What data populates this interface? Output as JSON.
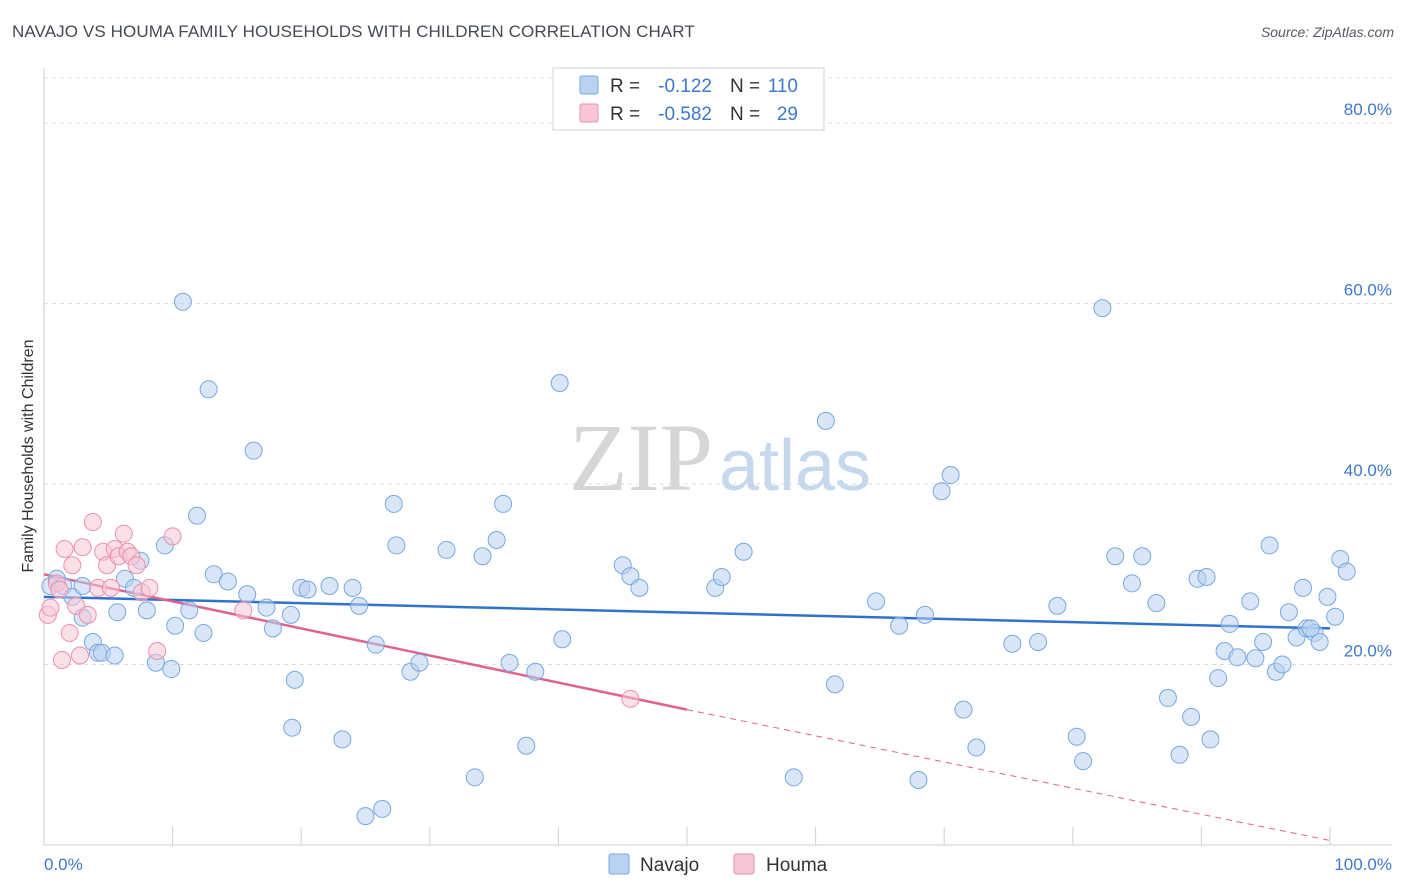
{
  "title": "NAVAJO VS HOUMA FAMILY HOUSEHOLDS WITH CHILDREN CORRELATION CHART",
  "source": "Source: ZipAtlas.com",
  "colors": {
    "navajo_fill": "#b8d2f1",
    "navajo_stroke": "#7aa8e0",
    "navajo_line": "#2f72cc",
    "houma_fill": "#f8c6d6",
    "houma_stroke": "#ec90ad",
    "houma_line": "#e0628f",
    "axis_label": "#3f78cc",
    "grid": "#dcdcdc"
  },
  "legend_top": {
    "rows": [
      {
        "r_label": "R =",
        "r_value": "-0.122",
        "n_label": "N =",
        "n_value": "110"
      },
      {
        "r_label": "R =",
        "r_value": "-0.582",
        "n_label": "N =",
        "n_value": "29"
      }
    ]
  },
  "watermark": {
    "zip": "ZIP",
    "atlas": "atlas"
  },
  "chart_data": {
    "type": "scatter",
    "title": "NAVAJO VS HOUMA FAMILY HOUSEHOLDS WITH CHILDREN CORRELATION CHART",
    "xlabel": "",
    "ylabel": "Family Households with Children",
    "xlim": [
      0,
      100
    ],
    "ylim": [
      0,
      85
    ],
    "x_tick_labels": [
      "0.0%",
      "100.0%"
    ],
    "y_ticks": [
      20,
      40,
      60,
      80
    ],
    "y_tick_labels": [
      "20.0%",
      "40.0%",
      "60.0%",
      "80.0%"
    ],
    "grid": true,
    "legend_position": "bottom-center",
    "series": [
      {
        "name": "Navajo",
        "points": [
          [
            0.5,
            28.7
          ],
          [
            1.0,
            29.5
          ],
          [
            1.5,
            28.7
          ],
          [
            2.2,
            27.5
          ],
          [
            3.0,
            28.7
          ],
          [
            3.0,
            25.2
          ],
          [
            3.8,
            22.5
          ],
          [
            4.2,
            21.3
          ],
          [
            4.5,
            21.3
          ],
          [
            5.5,
            21.0
          ],
          [
            5.7,
            25.8
          ],
          [
            6.3,
            29.5
          ],
          [
            7.0,
            28.5
          ],
          [
            7.5,
            31.5
          ],
          [
            8.0,
            26.0
          ],
          [
            8.7,
            20.2
          ],
          [
            9.4,
            33.2
          ],
          [
            9.9,
            19.5
          ],
          [
            10.2,
            24.3
          ],
          [
            10.8,
            60.2
          ],
          [
            11.3,
            26.0
          ],
          [
            11.9,
            36.5
          ],
          [
            12.4,
            23.5
          ],
          [
            12.8,
            50.5
          ],
          [
            13.2,
            30.0
          ],
          [
            14.3,
            29.2
          ],
          [
            15.8,
            27.8
          ],
          [
            16.3,
            43.7
          ],
          [
            17.3,
            26.3
          ],
          [
            17.8,
            24.0
          ],
          [
            19.2,
            25.5
          ],
          [
            19.3,
            13.0
          ],
          [
            19.5,
            18.3
          ],
          [
            20.0,
            28.5
          ],
          [
            20.5,
            28.3
          ],
          [
            22.2,
            28.7
          ],
          [
            23.2,
            11.7
          ],
          [
            24.0,
            28.5
          ],
          [
            24.5,
            26.5
          ],
          [
            25.0,
            3.2
          ],
          [
            25.8,
            22.2
          ],
          [
            26.3,
            4.0
          ],
          [
            27.2,
            37.8
          ],
          [
            27.4,
            33.2
          ],
          [
            28.5,
            19.2
          ],
          [
            29.2,
            20.2
          ],
          [
            31.3,
            32.7
          ],
          [
            33.5,
            7.5
          ],
          [
            34.1,
            32.0
          ],
          [
            35.2,
            33.8
          ],
          [
            35.7,
            37.8
          ],
          [
            36.2,
            20.2
          ],
          [
            37.5,
            11.0
          ],
          [
            38.2,
            19.2
          ],
          [
            40.1,
            51.2
          ],
          [
            40.3,
            22.8
          ],
          [
            45.0,
            31.0
          ],
          [
            45.6,
            29.8
          ],
          [
            46.3,
            28.5
          ],
          [
            52.2,
            28.5
          ],
          [
            52.7,
            29.7
          ],
          [
            54.4,
            32.5
          ],
          [
            58.3,
            7.5
          ],
          [
            60.8,
            47.0
          ],
          [
            61.5,
            17.8
          ],
          [
            64.7,
            27.0
          ],
          [
            66.5,
            24.3
          ],
          [
            68.0,
            7.2
          ],
          [
            68.5,
            25.5
          ],
          [
            69.8,
            39.2
          ],
          [
            70.5,
            41.0
          ],
          [
            71.5,
            15.0
          ],
          [
            72.5,
            10.8
          ],
          [
            75.3,
            22.3
          ],
          [
            77.3,
            22.5
          ],
          [
            78.8,
            26.5
          ],
          [
            80.3,
            12.0
          ],
          [
            80.8,
            9.3
          ],
          [
            82.3,
            59.5
          ],
          [
            83.3,
            32.0
          ],
          [
            84.6,
            29.0
          ],
          [
            85.4,
            32.0
          ],
          [
            86.5,
            26.8
          ],
          [
            87.4,
            16.3
          ],
          [
            88.3,
            10.0
          ],
          [
            89.2,
            14.2
          ],
          [
            89.7,
            29.5
          ],
          [
            90.4,
            29.7
          ],
          [
            90.7,
            11.7
          ],
          [
            91.3,
            18.5
          ],
          [
            91.8,
            21.5
          ],
          [
            92.2,
            24.5
          ],
          [
            92.8,
            20.8
          ],
          [
            93.8,
            27.0
          ],
          [
            94.2,
            20.7
          ],
          [
            94.8,
            22.5
          ],
          [
            95.3,
            33.2
          ],
          [
            95.8,
            19.2
          ],
          [
            96.3,
            20.0
          ],
          [
            96.8,
            25.8
          ],
          [
            97.4,
            23.0
          ],
          [
            97.9,
            28.5
          ],
          [
            98.2,
            24.0
          ],
          [
            98.8,
            23.5
          ],
          [
            99.2,
            22.5
          ],
          [
            99.8,
            27.5
          ],
          [
            100.4,
            25.3
          ],
          [
            100.8,
            31.7
          ],
          [
            101.3,
            30.3
          ],
          [
            98.5,
            24.0
          ]
        ]
      },
      {
        "name": "Houma",
        "points": [
          [
            0.3,
            25.5
          ],
          [
            0.5,
            26.3
          ],
          [
            1.0,
            29.0
          ],
          [
            1.2,
            28.3
          ],
          [
            1.4,
            20.5
          ],
          [
            1.6,
            32.8
          ],
          [
            2.0,
            23.5
          ],
          [
            2.2,
            31.0
          ],
          [
            2.5,
            26.5
          ],
          [
            2.8,
            21.0
          ],
          [
            3.0,
            33.0
          ],
          [
            3.4,
            25.5
          ],
          [
            3.8,
            35.8
          ],
          [
            4.2,
            28.5
          ],
          [
            4.6,
            32.5
          ],
          [
            4.9,
            31.0
          ],
          [
            5.2,
            28.5
          ],
          [
            5.5,
            32.8
          ],
          [
            5.8,
            32.0
          ],
          [
            6.2,
            34.5
          ],
          [
            6.5,
            32.5
          ],
          [
            6.8,
            32.0
          ],
          [
            7.2,
            31.0
          ],
          [
            7.6,
            28.0
          ],
          [
            8.2,
            28.5
          ],
          [
            8.8,
            21.5
          ],
          [
            10.0,
            34.2
          ],
          [
            15.5,
            26.0
          ],
          [
            45.6,
            16.2
          ]
        ]
      }
    ],
    "trendlines": [
      {
        "series": "Navajo",
        "x": [
          0,
          100
        ],
        "y": [
          27.5,
          24.0
        ],
        "style": "solid"
      },
      {
        "series": "Houma",
        "x": [
          0,
          50
        ],
        "y": [
          30.0,
          15.0
        ],
        "style": "solid"
      },
      {
        "series": "Houma",
        "x": [
          50,
          100
        ],
        "y": [
          15.0,
          0.5
        ],
        "style": "dashed"
      }
    ]
  }
}
